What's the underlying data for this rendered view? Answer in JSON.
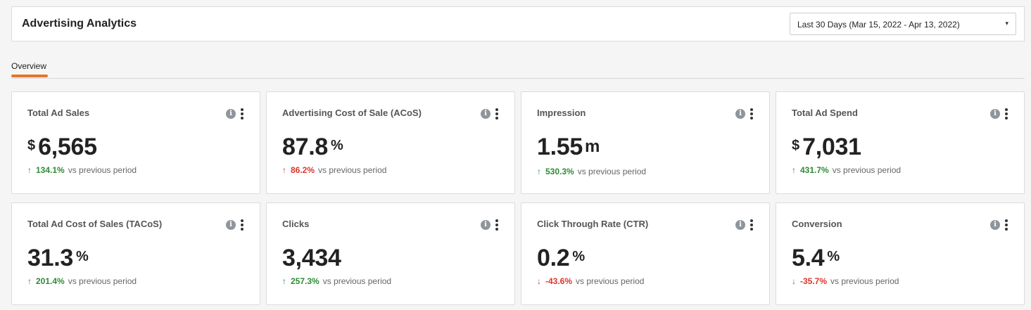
{
  "header": {
    "title": "Advertising Analytics",
    "date_range": "Last 30 Days (Mar 15, 2022 - Apr 13, 2022)",
    "caret": "▾"
  },
  "tabs": [
    {
      "label": "Overview",
      "active": true
    }
  ],
  "colors": {
    "accent": "#e5762c",
    "positive": "#2e8b35",
    "negative": "#d9362b"
  },
  "cards": [
    {
      "label": "Total Ad Sales",
      "prefix": "$",
      "value": "6,565",
      "suffix": "",
      "trend": "up",
      "arrow": "↑",
      "change": "134.1%",
      "vs": "vs previous period"
    },
    {
      "label": "Advertising Cost of Sale (ACoS)",
      "prefix": "",
      "value": "87.8",
      "suffix": "%",
      "trend": "down",
      "arrow": "↑",
      "change": "86.2%",
      "vs": "vs previous period"
    },
    {
      "label": "Impression",
      "prefix": "",
      "value": "1.55",
      "suffix": "m",
      "trend": "up",
      "arrow": "↑",
      "change": "530.3%",
      "vs": "vs previous period"
    },
    {
      "label": "Total Ad Spend",
      "prefix": "$",
      "value": "7,031",
      "suffix": "",
      "trend": "up",
      "arrow": "↑",
      "change": "431.7%",
      "vs": "vs previous period"
    },
    {
      "label": "Total Ad Cost of Sales (TACoS)",
      "prefix": "",
      "value": "31.3",
      "suffix": "%",
      "trend": "up",
      "arrow": "↑",
      "change": "201.4%",
      "vs": "vs previous period"
    },
    {
      "label": "Clicks",
      "prefix": "",
      "value": "3,434",
      "suffix": "",
      "trend": "up",
      "arrow": "↑",
      "change": "257.3%",
      "vs": "vs previous period"
    },
    {
      "label": "Click Through Rate (CTR)",
      "prefix": "",
      "value": "0.2",
      "suffix": "%",
      "trend": "down",
      "arrow": "↓",
      "change": "-43.6%",
      "vs": "vs previous period"
    },
    {
      "label": "Conversion",
      "prefix": "",
      "value": "5.4",
      "suffix": "%",
      "trend": "down",
      "arrow": "↓",
      "change": "-35.7%",
      "vs": "vs previous period"
    }
  ],
  "icons": {
    "info": "info-icon",
    "more": "more-vertical-icon"
  },
  "info_glyph": "i"
}
